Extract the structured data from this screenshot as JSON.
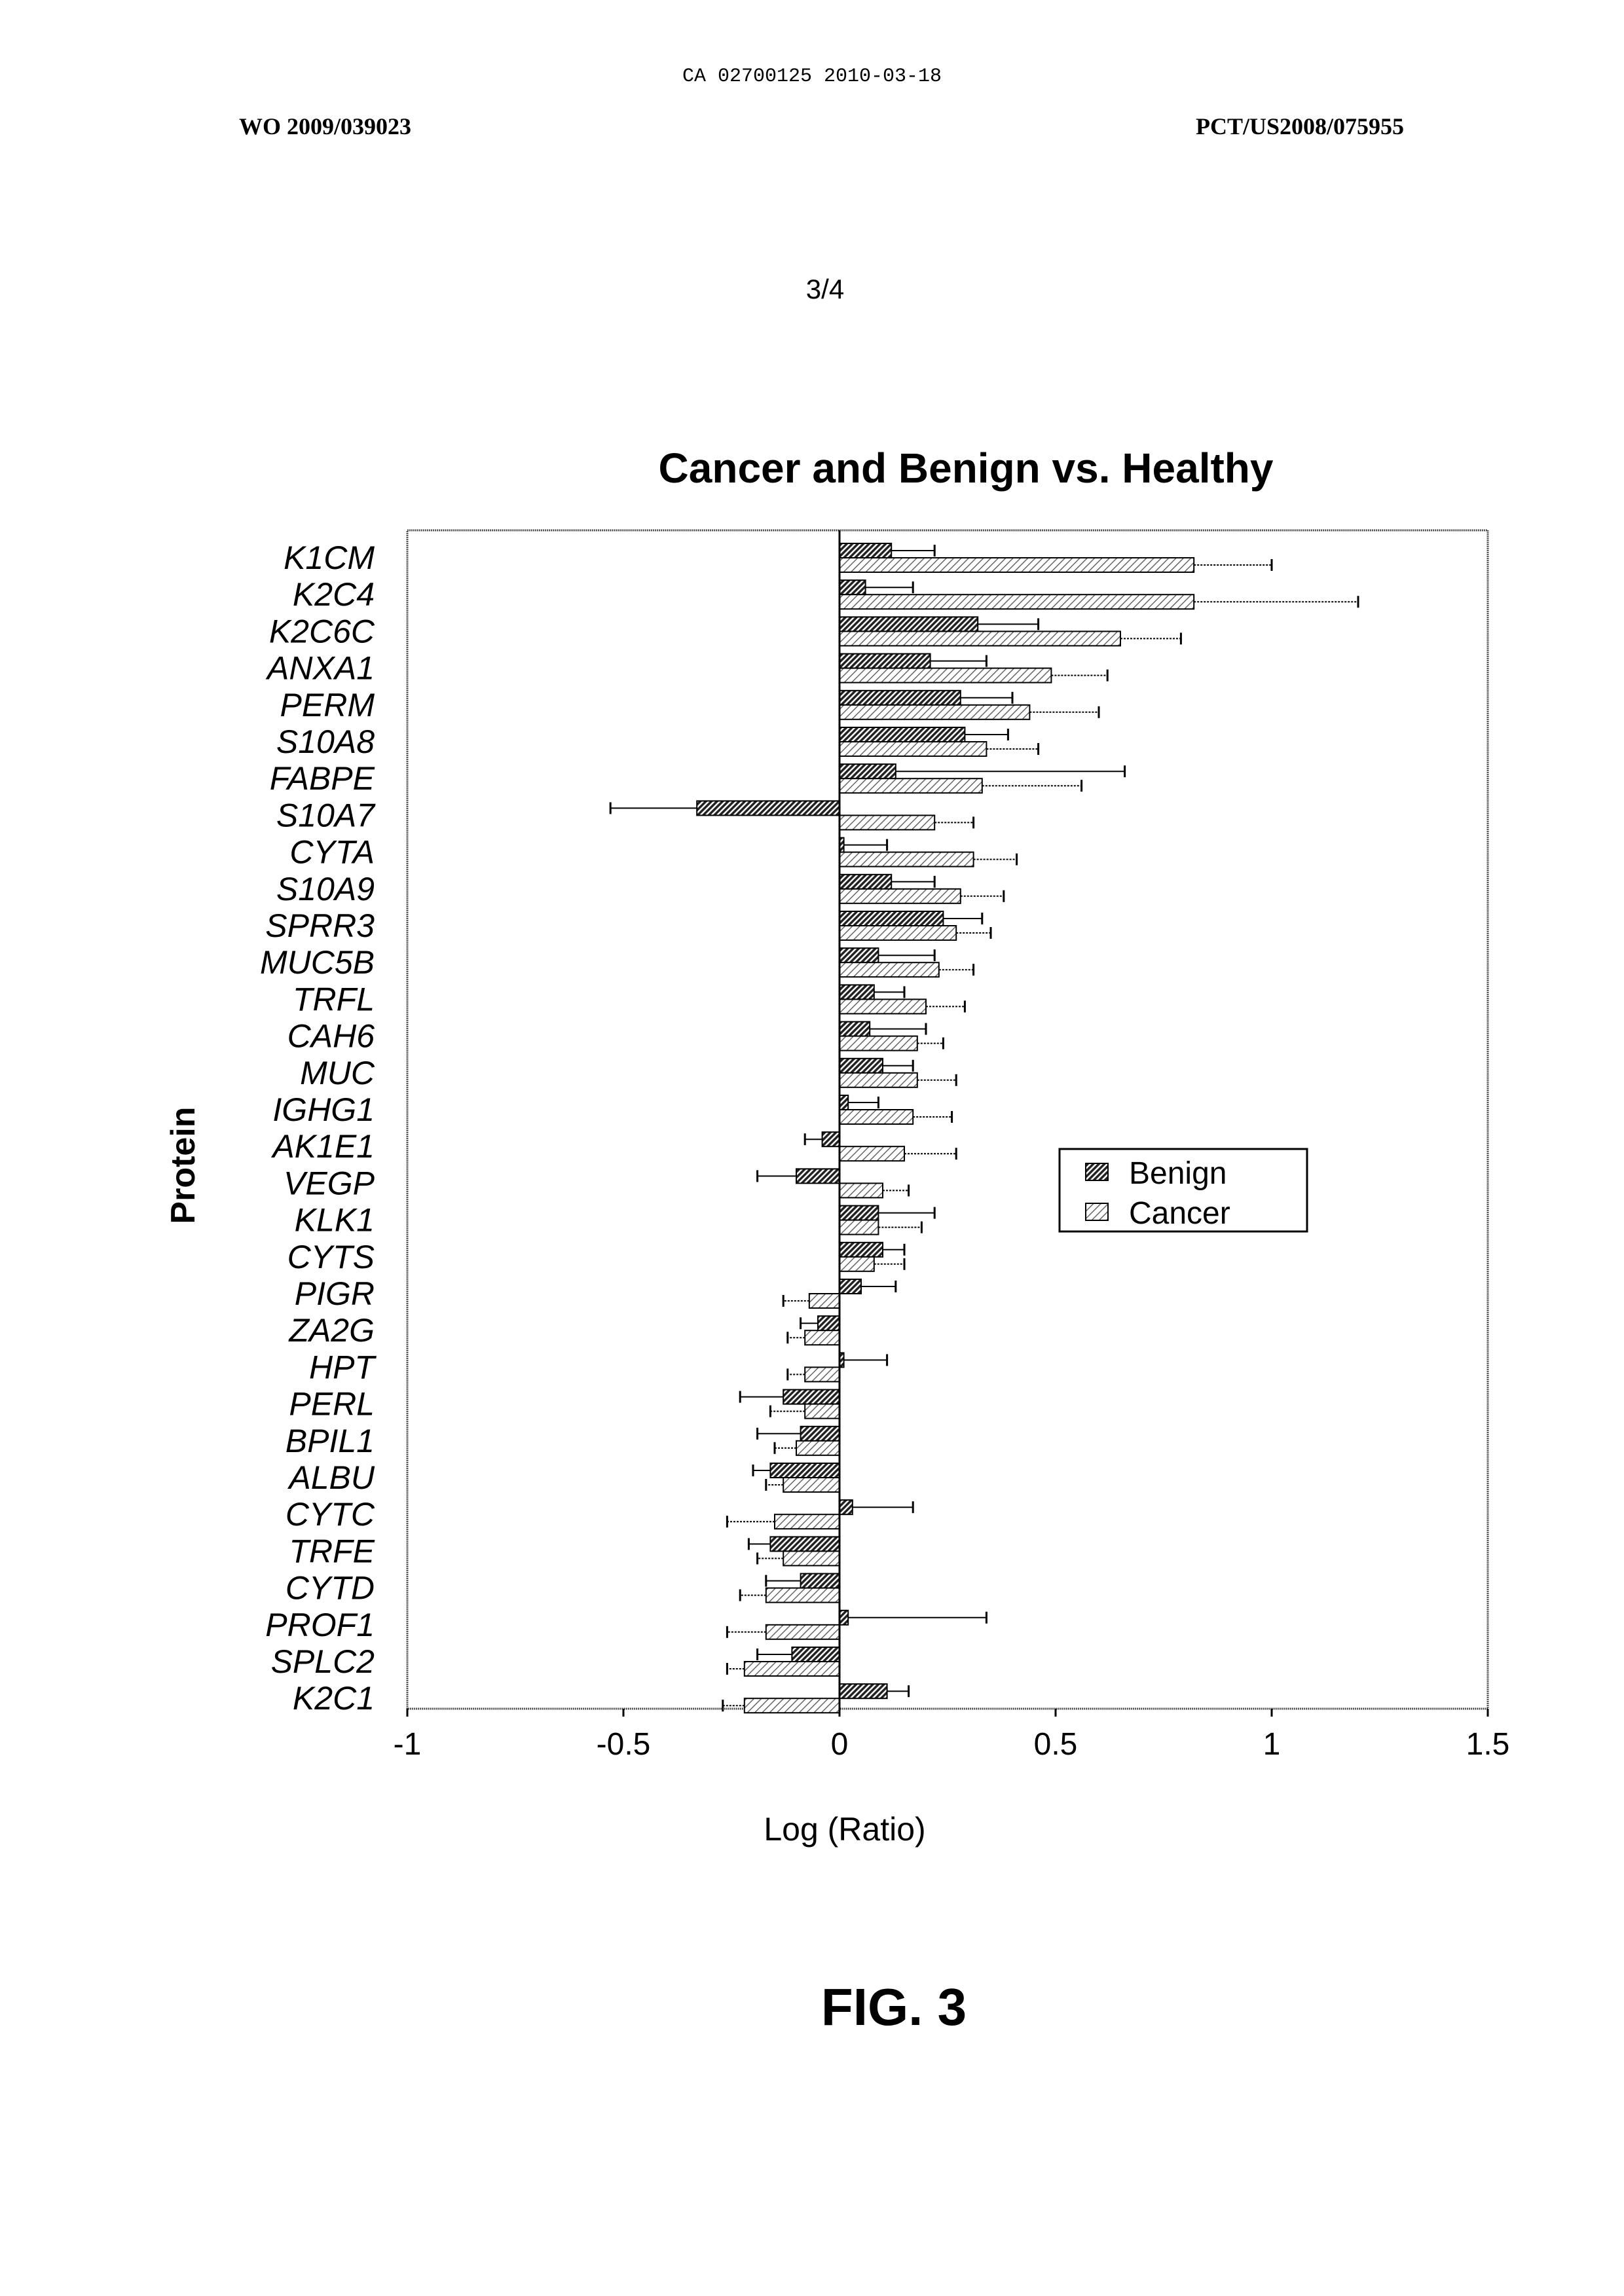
{
  "header": {
    "stamp": "CA 02700125 2010-03-18",
    "left_id": "WO 2009/039023",
    "right_id": "PCT/US2008/075955",
    "page_number": "3/4"
  },
  "figure_caption": "FIG. 3",
  "chart_data": {
    "type": "bar",
    "orientation": "horizontal",
    "title": "Cancer and Benign vs. Healthy",
    "xlabel": "Log (Ratio)",
    "ylabel": "Protein",
    "xlim": [
      -1,
      1.5
    ],
    "xticks": [
      "-1",
      "-0.5",
      "0",
      "0.5",
      "1",
      "1.5"
    ],
    "grid": false,
    "legend_position": "right",
    "categories": [
      "K1CM",
      "K2C4",
      "K2C6C",
      "ANXA1",
      "PERM",
      "S10A8",
      "FABPE",
      "S10A7",
      "CYTA",
      "S10A9",
      "SPRR3",
      "MUC5B",
      "TRFL",
      "CAH6",
      "MUC",
      "IGHG1",
      "AK1E1",
      "VEGP",
      "KLK1",
      "CYTS",
      "PIGR",
      "ZA2G",
      "HPT",
      "PERL",
      "BPIL1",
      "ALBU",
      "CYTC",
      "TRFE",
      "CYTD",
      "PROF1",
      "SPLC2",
      "K2C1"
    ],
    "series": [
      {
        "name": "Benign",
        "pattern": "dark-hatch",
        "values": [
          0.12,
          0.06,
          0.32,
          0.21,
          0.28,
          0.29,
          0.13,
          -0.33,
          0.01,
          0.12,
          0.24,
          0.09,
          0.08,
          0.07,
          0.1,
          0.02,
          -0.04,
          -0.1,
          0.09,
          0.1,
          0.05,
          -0.05,
          0.01,
          -0.13,
          -0.09,
          -0.16,
          0.03,
          -0.16,
          -0.09,
          0.02,
          -0.11,
          0.11
        ],
        "errors": [
          0.1,
          0.11,
          0.14,
          0.13,
          0.12,
          0.1,
          0.53,
          0.2,
          0.1,
          0.1,
          0.09,
          0.13,
          0.07,
          0.13,
          0.07,
          0.07,
          0.04,
          0.09,
          0.13,
          0.05,
          0.08,
          0.04,
          0.1,
          0.1,
          0.1,
          0.04,
          0.14,
          0.05,
          0.08,
          0.32,
          0.08,
          0.05
        ]
      },
      {
        "name": "Cancer",
        "pattern": "light-hatch",
        "values": [
          0.82,
          0.82,
          0.65,
          0.49,
          0.44,
          0.34,
          0.33,
          0.22,
          0.31,
          0.28,
          0.27,
          0.23,
          0.2,
          0.18,
          0.18,
          0.17,
          0.15,
          0.1,
          0.09,
          0.08,
          -0.07,
          -0.08,
          -0.08,
          -0.08,
          -0.1,
          -0.13,
          -0.15,
          -0.13,
          -0.17,
          -0.17,
          -0.22,
          -0.22
        ],
        "errors": [
          0.18,
          0.38,
          0.14,
          0.13,
          0.16,
          0.12,
          0.23,
          0.09,
          0.1,
          0.1,
          0.08,
          0.08,
          0.09,
          0.06,
          0.09,
          0.09,
          0.12,
          0.06,
          0.1,
          0.07,
          0.06,
          0.04,
          0.04,
          0.08,
          0.05,
          0.04,
          0.11,
          0.06,
          0.06,
          0.09,
          0.04,
          0.05
        ]
      }
    ]
  }
}
